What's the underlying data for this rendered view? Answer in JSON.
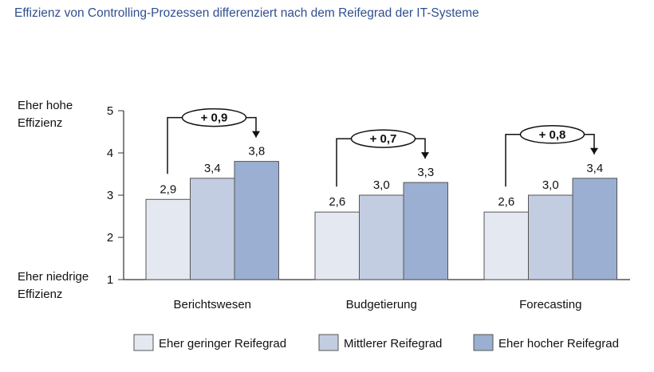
{
  "chart_data": {
    "type": "bar",
    "title": "Effizienz von Controlling-Prozessen differenziert nach dem Reifegrad der IT-Systeme",
    "ylabel_top": "Eher hohe Effizienz",
    "ylabel_bottom": "Eher niedrige Effizienz",
    "ylim": [
      1,
      5
    ],
    "yticks": [
      "1",
      "2",
      "3",
      "4",
      "5"
    ],
    "categories": [
      "Berichtswesen",
      "Budgetierung",
      "Forecasting"
    ],
    "series": [
      {
        "name": "Eher geringer Reifegrad",
        "values": [
          2.9,
          2.6,
          2.6
        ],
        "labels": [
          "2,9",
          "2,6",
          "2,6"
        ],
        "color": "#e3e8f1"
      },
      {
        "name": "Mittlerer Reifegrad",
        "values": [
          3.4,
          3.0,
          3.0
        ],
        "labels": [
          "3,4",
          "3,0",
          "3,0"
        ],
        "color": "#c3cde1"
      },
      {
        "name": "Eher hocher Reifegrad",
        "values": [
          3.8,
          3.3,
          3.4
        ],
        "labels": [
          "3,8",
          "3,3",
          "3,4"
        ],
        "color": "#9aafd1"
      }
    ],
    "annotations": [
      "+ 0,9",
      "+ 0,7",
      "+ 0,8"
    ],
    "grid": false,
    "legend": "bottom"
  }
}
